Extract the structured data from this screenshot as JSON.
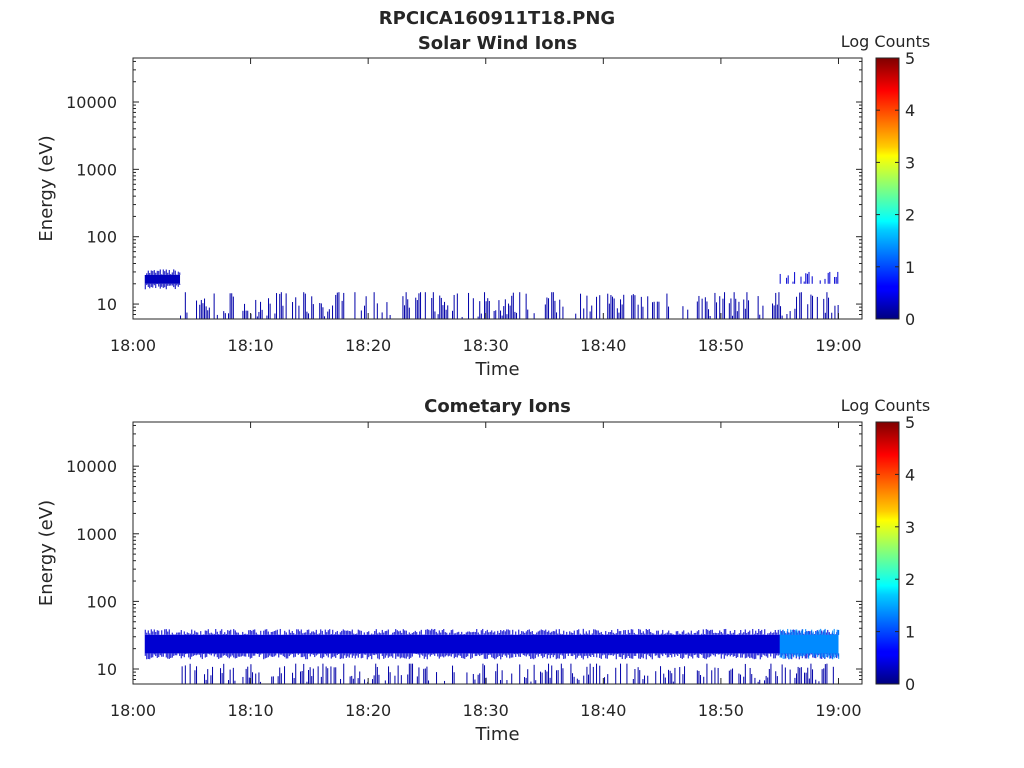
{
  "figure": {
    "title": "RPCICA160911T18.PNG"
  },
  "chart_data": [
    {
      "type": "heatmap",
      "title": "Solar Wind Ions",
      "xlabel": "Time",
      "ylabel": "Energy (eV)",
      "colorbar_label": "Log Counts",
      "colormap": "jet",
      "y_scale": "log",
      "xlim": [
        "18:00",
        "19:02"
      ],
      "ylim": [
        6,
        45000
      ],
      "x_ticks": [
        "18:00",
        "18:10",
        "18:20",
        "18:30",
        "18:40",
        "18:50",
        "19:00"
      ],
      "y_ticks": [
        "10",
        "100",
        "1000",
        "10000"
      ],
      "y_tick_values": [
        10,
        100,
        1000,
        10000
      ],
      "clim": [
        0,
        5
      ],
      "colorbar_ticks": [
        "0",
        "1",
        "2",
        "3",
        "4",
        "5"
      ],
      "grid": false,
      "features": [
        {
          "t_start": "18:01",
          "t_end": "18:04",
          "energy_low": 20,
          "energy_high": 27,
          "log_counts": 0.3
        },
        {
          "t_start": "18:04",
          "t_end": "19:00",
          "energy_low": 6,
          "energy_high": 15,
          "log_counts": 0.2,
          "sparse": true
        },
        {
          "t_start": "18:55",
          "t_end": "19:00",
          "energy_low": 20,
          "energy_high": 30,
          "log_counts": 0.4,
          "sparse": true
        }
      ]
    },
    {
      "type": "heatmap",
      "title": "Cometary Ions",
      "xlabel": "Time",
      "ylabel": "Energy (eV)",
      "colorbar_label": "Log Counts",
      "colormap": "jet",
      "y_scale": "log",
      "xlim": [
        "18:00",
        "19:02"
      ],
      "ylim": [
        6,
        45000
      ],
      "x_ticks": [
        "18:00",
        "18:10",
        "18:20",
        "18:30",
        "18:40",
        "18:50",
        "19:00"
      ],
      "y_ticks": [
        "10",
        "100",
        "1000",
        "10000"
      ],
      "y_tick_values": [
        10,
        100,
        1000,
        10000
      ],
      "clim": [
        0,
        5
      ],
      "colorbar_ticks": [
        "0",
        "1",
        "2",
        "3",
        "4",
        "5"
      ],
      "grid": false,
      "features": [
        {
          "t_start": "18:01",
          "t_end": "19:00",
          "energy_low": 17,
          "energy_high": 32,
          "log_counts": 0.4
        },
        {
          "t_start": "18:55",
          "t_end": "19:00",
          "energy_low": 17,
          "energy_high": 32,
          "log_counts": 1.3
        },
        {
          "t_start": "18:04",
          "t_end": "19:00",
          "energy_low": 6,
          "energy_high": 12,
          "log_counts": 0.2,
          "sparse": true
        }
      ]
    }
  ]
}
